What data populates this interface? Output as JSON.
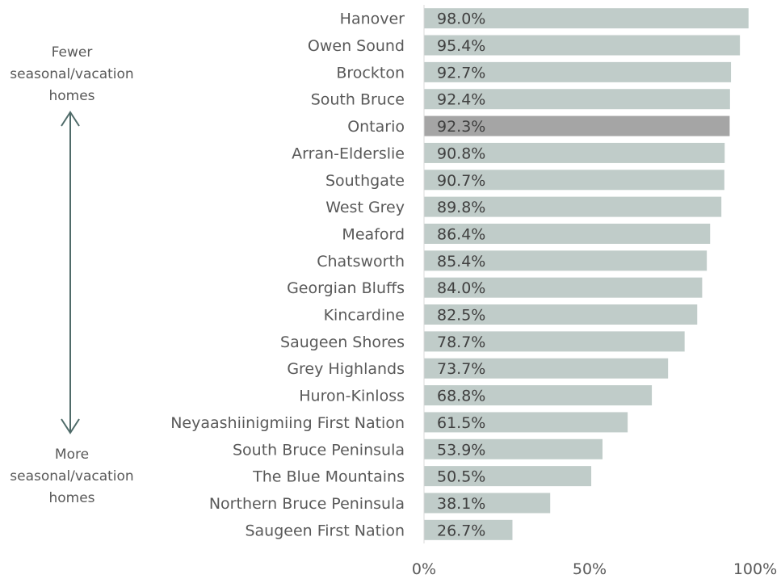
{
  "chart_data": {
    "type": "bar",
    "orientation": "horizontal",
    "categories": [
      "Hanover",
      "Owen Sound",
      "Brockton",
      "South Bruce",
      "Ontario",
      "Arran-Elderslie",
      "Southgate",
      "West Grey",
      "Meaford",
      "Chatsworth",
      "Georgian Bluffs",
      "Kincardine",
      "Saugeen Shores",
      "Grey Highlands",
      "Huron-Kinloss",
      "Neyaashiinigmiing First Nation",
      "South Bruce Peninsula",
      "The Blue Mountains",
      "Northern Bruce Peninsula",
      "Saugeen First Nation"
    ],
    "values": [
      98.0,
      95.4,
      92.7,
      92.4,
      92.3,
      90.8,
      90.7,
      89.8,
      86.4,
      85.4,
      84.0,
      82.5,
      78.7,
      73.7,
      68.8,
      61.5,
      53.9,
      50.5,
      38.1,
      26.7
    ],
    "value_labels": [
      "98.0%",
      "95.4%",
      "92.7%",
      "92.4%",
      "92.3%",
      "90.8%",
      "90.7%",
      "89.8%",
      "86.4%",
      "85.4%",
      "84.0%",
      "82.5%",
      "78.7%",
      "73.7%",
      "68.8%",
      "61.5%",
      "53.9%",
      "50.5%",
      "38.1%",
      "26.7%"
    ],
    "highlight_category": "Ontario",
    "xlim": [
      0,
      100
    ],
    "xticks": [
      0,
      50,
      100
    ],
    "xtick_labels": [
      "0%",
      "50%",
      "100%"
    ],
    "title": "",
    "xlabel": "",
    "ylabel": "",
    "colors": {
      "bar": "#c0ccc9",
      "highlight": "#a5a5a5",
      "arrow": "#4f6b69",
      "axis": "#d9d9d9"
    }
  },
  "annotations": {
    "top": [
      "Fewer",
      "seasonal/vacation",
      "homes"
    ],
    "bottom": [
      "More",
      "seasonal/vacation",
      "homes"
    ]
  }
}
